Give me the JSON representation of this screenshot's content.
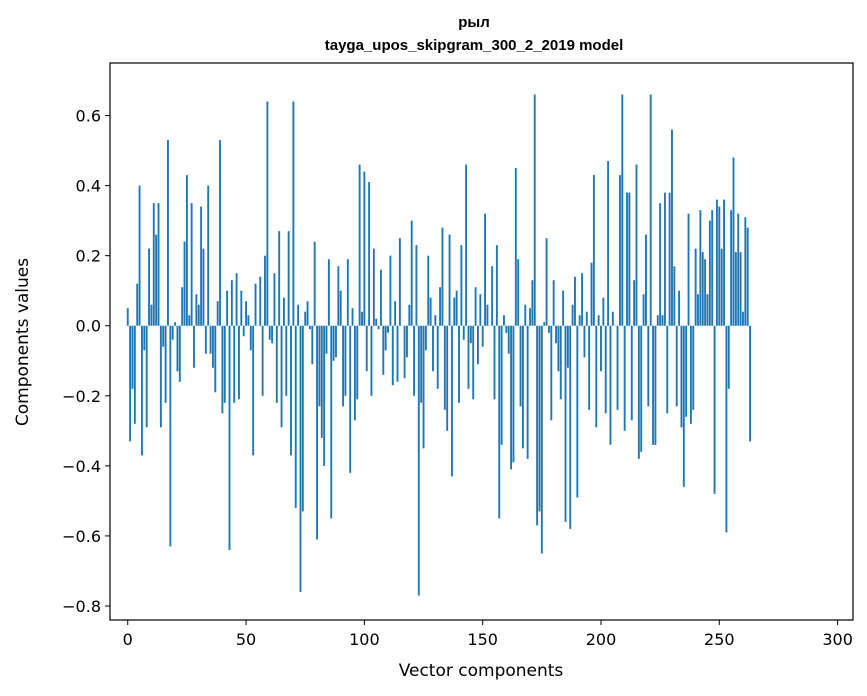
{
  "chart_data": {
    "type": "bar",
    "title": "рыл",
    "subtitle": "tayga_upos_skipgram_300_2_2019 model",
    "xlabel": "Vector components",
    "ylabel": "Components values",
    "xlim": [
      -7.5,
      306.5
    ],
    "ylim": [
      -0.84,
      0.75
    ],
    "xticks": [
      0,
      50,
      100,
      150,
      200,
      250,
      300
    ],
    "xtick_labels": [
      "0",
      "50",
      "100",
      "150",
      "200",
      "250",
      "300"
    ],
    "yticks": [
      -0.8,
      -0.6,
      -0.4,
      -0.2,
      0.0,
      0.2,
      0.4,
      0.6
    ],
    "ytick_labels": [
      "−0.8",
      "−0.6",
      "−0.4",
      "−0.2",
      "0.0",
      "0.2",
      "0.4",
      "0.6"
    ],
    "grid": false,
    "color": "#1f77b4",
    "values": [
      0.05,
      -0.33,
      -0.18,
      -0.28,
      0.12,
      0.4,
      -0.37,
      -0.07,
      -0.29,
      0.22,
      0.06,
      0.35,
      0.26,
      0.35,
      -0.29,
      -0.06,
      -0.22,
      0.53,
      -0.63,
      -0.04,
      0.01,
      -0.13,
      -0.16,
      0.11,
      0.24,
      0.43,
      0.03,
      0.35,
      -0.12,
      0.09,
      0.06,
      0.34,
      0.22,
      -0.08,
      0.4,
      -0.08,
      -0.12,
      -0.19,
      0.07,
      0.53,
      -0.25,
      -0.22,
      0.1,
      -0.64,
      0.13,
      -0.22,
      0.15,
      -0.21,
      0.1,
      -0.03,
      0.07,
      0.03,
      -0.07,
      -0.37,
      0.12,
      0.0,
      0.14,
      -0.2,
      0.2,
      0.64,
      -0.04,
      -0.05,
      0.15,
      -0.22,
      0.27,
      -0.29,
      0.08,
      -0.2,
      0.27,
      -0.37,
      0.64,
      -0.52,
      0.06,
      -0.76,
      -0.53,
      0.04,
      0.07,
      -0.01,
      -0.11,
      0.24,
      -0.61,
      -0.23,
      -0.32,
      -0.4,
      -0.08,
      0.19,
      -0.55,
      -0.1,
      -0.09,
      0.17,
      0.1,
      -0.23,
      -0.2,
      0.19,
      -0.42,
      0.05,
      -0.27,
      -0.21,
      0.46,
      0.04,
      0.44,
      -0.13,
      0.41,
      -0.2,
      0.22,
      0.02,
      -0.01,
      0.16,
      -0.14,
      -0.07,
      -0.02,
      0.2,
      -0.17,
      0.07,
      -0.16,
      0.25,
      0.0,
      -0.15,
      -0.09,
      0.06,
      0.3,
      -0.2,
      0.23,
      -0.77,
      -0.22,
      -0.35,
      -0.07,
      0.2,
      0.08,
      -0.13,
      0.03,
      -0.18,
      0.11,
      0.28,
      -0.24,
      -0.3,
      0.26,
      -0.43,
      0.08,
      0.1,
      -0.22,
      0.23,
      -0.04,
      0.46,
      -0.18,
      -0.05,
      -0.21,
      0.11,
      -0.11,
      0.09,
      -0.06,
      0.32,
      0.06,
      0.0,
      0.17,
      -0.21,
      0.23,
      -0.55,
      -0.34,
      0.03,
      -0.02,
      -0.08,
      -0.41,
      -0.39,
      0.45,
      0.19,
      -0.23,
      -0.35,
      0.06,
      -0.38,
      0.05,
      0.13,
      0.66,
      -0.57,
      -0.53,
      -0.65,
      0.01,
      0.25,
      -0.02,
      -0.27,
      0.13,
      -0.05,
      -0.13,
      -0.21,
      0.1,
      -0.56,
      -0.12,
      -0.58,
      0.06,
      0.14,
      -0.49,
      0.03,
      0.15,
      -0.09,
      0.04,
      -0.24,
      0.18,
      0.43,
      -0.29,
      0.03,
      -0.13,
      0.08,
      -0.25,
      0.47,
      -0.34,
      0.04,
      0.0,
      -0.24,
      0.43,
      0.66,
      -0.3,
      0.38,
      0.38,
      -0.27,
      0.13,
      0.46,
      -0.38,
      -0.36,
      0.09,
      0.26,
      -0.23,
      0.66,
      -0.34,
      -0.34,
      0.03,
      0.35,
      0.03,
      0.38,
      -0.25,
      0.38,
      0.56,
      0.17,
      -0.23,
      0.1,
      -0.29,
      -0.46,
      -0.26,
      0.32,
      -0.28,
      -0.24,
      0.22,
      0.09,
      0.33,
      0.21,
      0.19,
      0.09,
      0.3,
      0.33,
      -0.48,
      0.36,
      0.34,
      0.22,
      0.36,
      -0.59,
      -0.18,
      0.33,
      0.48,
      0.21,
      0.32,
      0.21,
      0.04,
      0.31,
      0.28,
      -0.33
    ]
  }
}
